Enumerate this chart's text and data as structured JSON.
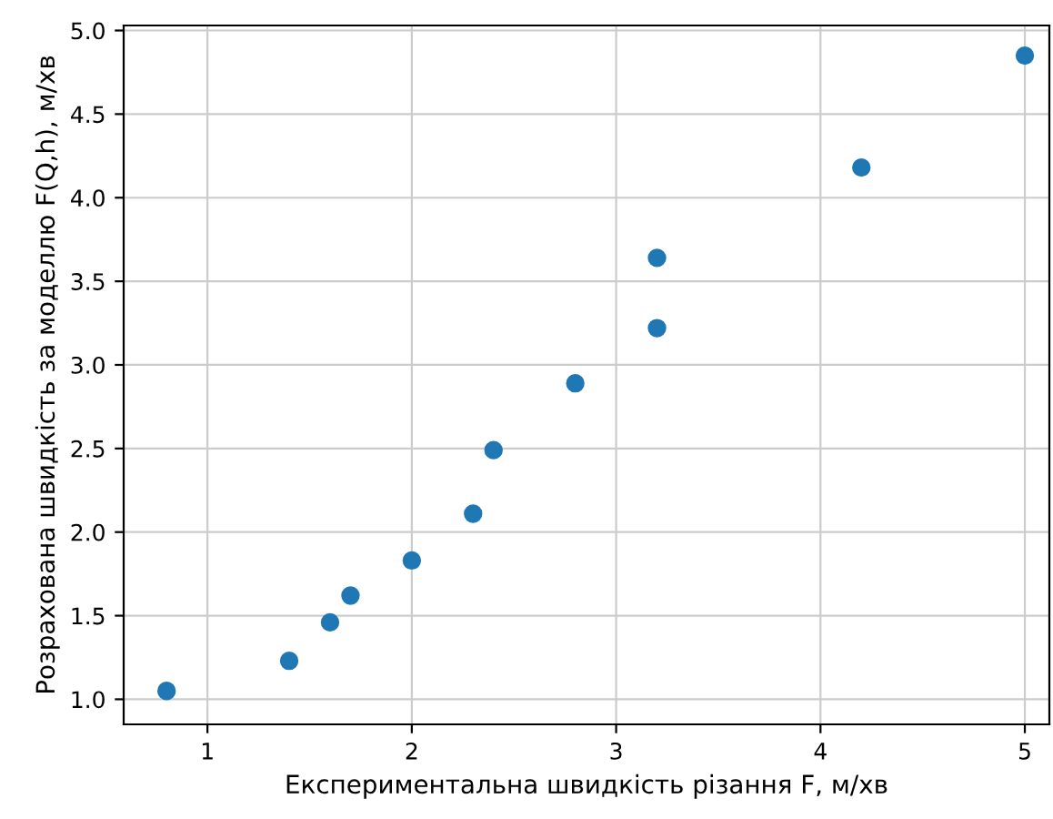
{
  "chart_data": {
    "type": "scatter",
    "xlabel": "Експериментальна швидкість різання F, м/хв",
    "ylabel": "Розрахована швидкість за моделлю F(Q,h), м/хв",
    "x": [
      0.8,
      1.4,
      1.6,
      1.7,
      2.0,
      2.3,
      2.4,
      2.8,
      3.2,
      3.2,
      4.2,
      5.0
    ],
    "series": [
      {
        "color": "#1f77b4",
        "values": [
          1.05,
          1.23,
          1.46,
          1.62,
          1.83,
          2.11,
          2.49,
          2.89,
          3.22,
          3.64,
          4.18,
          4.85
        ]
      }
    ],
    "xlim": [
      0.59,
      5.12
    ],
    "xticks": [
      1,
      2,
      3,
      4,
      5
    ],
    "ylim": [
      0.85,
      5.03
    ],
    "yticks": [
      {
        "value": 1,
        "label": "1.0"
      },
      1.5,
      {
        "value": 2,
        "label": "2.0"
      },
      2.5,
      {
        "value": 3,
        "label": "3.0"
      },
      3.5,
      {
        "value": 4,
        "label": "4.0"
      },
      4.5,
      {
        "value": 5,
        "label": "5.0"
      }
    ],
    "grid": true,
    "marker": "circle"
  }
}
